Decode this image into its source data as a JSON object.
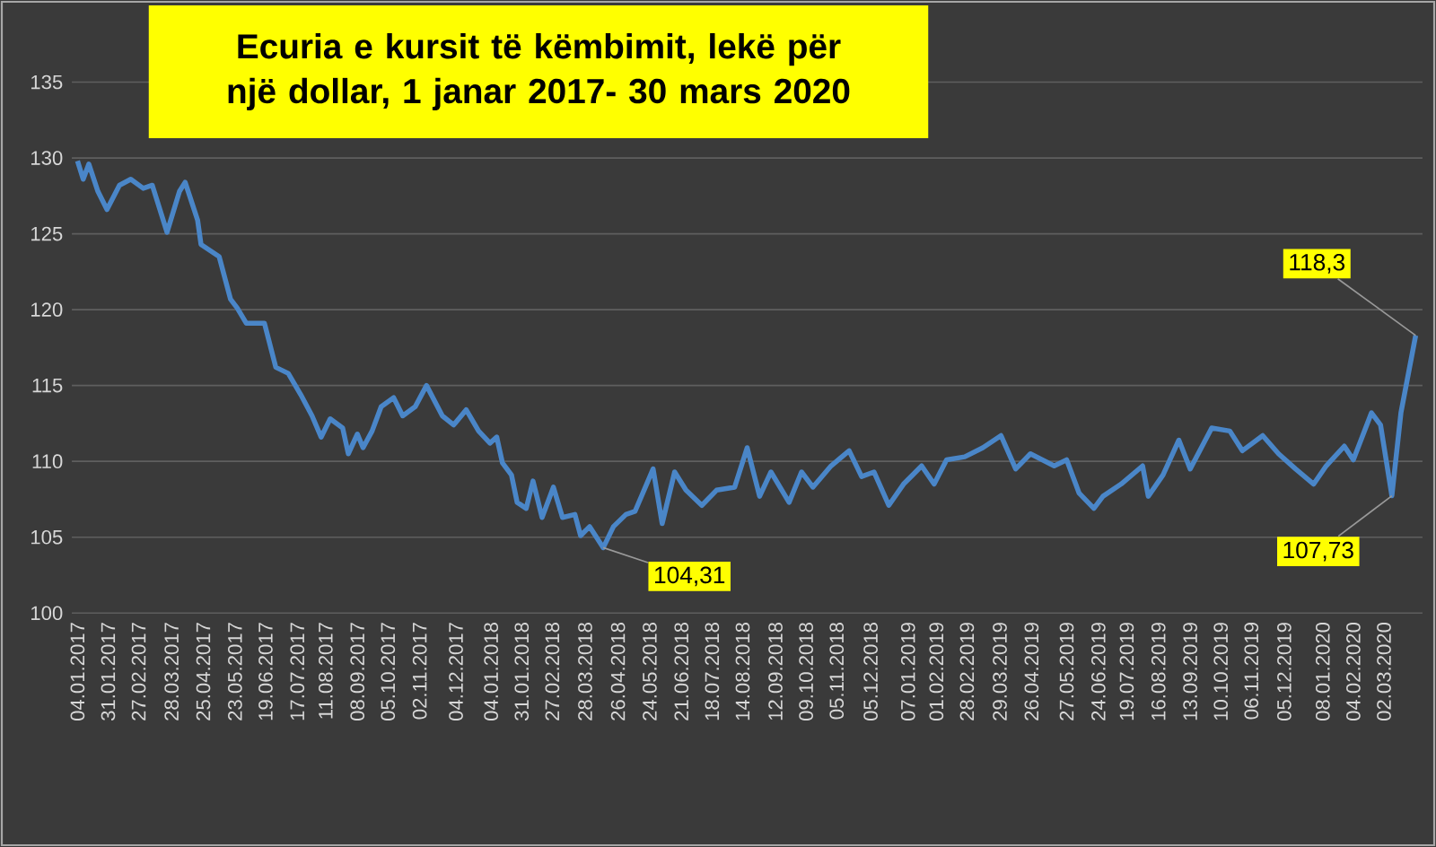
{
  "chart_data": {
    "type": "line",
    "title": "Ecuria e kursit të këmbimit, lekë për një dollar, 1 janar 2017- 30 mars 2020",
    "x": [
      "2017-01-04",
      "2017-01-09",
      "2017-01-14",
      "2017-01-22",
      "2017-01-30",
      "2017-02-10",
      "2017-02-20",
      "2017-03-03",
      "2017-03-11",
      "2017-03-24",
      "2017-04-04",
      "2017-04-09",
      "2017-04-20",
      "2017-04-23",
      "2017-05-09",
      "2017-05-19",
      "2017-05-25",
      "2017-06-02",
      "2017-06-18",
      "2017-06-28",
      "2017-07-09",
      "2017-07-20",
      "2017-07-30",
      "2017-08-07",
      "2017-08-15",
      "2017-08-26",
      "2017-08-31",
      "2017-09-08",
      "2017-09-13",
      "2017-09-21",
      "2017-09-29",
      "2017-10-10",
      "2017-10-18",
      "2017-10-29",
      "2017-11-08",
      "2017-11-22",
      "2017-12-02",
      "2017-12-13",
      "2017-12-24",
      "2018-01-03",
      "2018-01-09",
      "2018-01-14",
      "2018-01-22",
      "2018-01-27",
      "2018-02-04",
      "2018-02-10",
      "2018-02-18",
      "2018-02-28",
      "2018-03-08",
      "2018-03-19",
      "2018-03-24",
      "2018-04-01",
      "2018-04-13",
      "2018-04-22",
      "2018-05-03",
      "2018-05-11",
      "2018-05-19",
      "2018-05-27",
      "2018-06-04",
      "2018-06-15",
      "2018-06-25",
      "2018-07-09",
      "2018-07-22",
      "2018-08-07",
      "2018-08-18",
      "2018-08-29",
      "2018-09-08",
      "2018-09-24",
      "2018-10-05",
      "2018-10-15",
      "2018-10-31",
      "2018-11-16",
      "2018-11-27",
      "2018-12-08",
      "2018-12-21",
      "2019-01-03",
      "2019-01-19",
      "2019-01-30",
      "2019-02-10",
      "2019-02-26",
      "2019-03-14",
      "2019-03-30",
      "2019-04-12",
      "2019-04-25",
      "2019-05-16",
      "2019-05-27",
      "2019-06-07",
      "2019-06-20",
      "2019-06-28",
      "2019-07-14",
      "2019-08-02",
      "2019-08-07",
      "2019-08-20",
      "2019-09-03",
      "2019-09-13",
      "2019-10-02",
      "2019-10-18",
      "2019-10-29",
      "2019-11-16",
      "2019-11-30",
      "2019-12-15",
      "2019-12-31",
      "2020-01-11",
      "2020-01-27",
      "2020-02-04",
      "2020-02-20",
      "2020-02-28",
      "2020-03-09",
      "2020-03-17",
      "2020-03-30"
    ],
    "values": [
      129.8,
      128.6,
      129.6,
      127.8,
      126.6,
      128.2,
      128.6,
      128.0,
      128.2,
      125.1,
      127.8,
      128.4,
      125.9,
      124.3,
      123.5,
      120.7,
      120.1,
      119.1,
      119.1,
      116.2,
      115.8,
      114.4,
      113.0,
      111.6,
      112.8,
      112.2,
      110.5,
      111.8,
      110.9,
      112.0,
      113.6,
      114.2,
      113.0,
      113.6,
      115.0,
      113.0,
      112.4,
      113.4,
      112.0,
      111.2,
      111.6,
      109.9,
      109.1,
      107.3,
      106.9,
      108.7,
      106.3,
      108.3,
      106.3,
      106.5,
      105.1,
      105.7,
      104.31,
      105.7,
      106.5,
      106.7,
      108.1,
      109.5,
      105.9,
      109.3,
      108.1,
      107.1,
      108.1,
      108.3,
      110.9,
      107.7,
      109.3,
      107.3,
      109.3,
      108.3,
      109.7,
      110.7,
      109.0,
      109.3,
      107.1,
      108.5,
      109.7,
      108.5,
      110.1,
      110.3,
      110.9,
      111.7,
      109.5,
      110.5,
      109.7,
      110.1,
      107.9,
      106.9,
      107.7,
      108.5,
      109.7,
      107.7,
      109.1,
      111.4,
      109.5,
      112.2,
      112.0,
      110.7,
      111.7,
      110.5,
      109.5,
      108.5,
      109.7,
      111.0,
      110.1,
      113.2,
      112.4,
      107.73,
      113.2,
      118.3
    ],
    "color": "#4a86c8",
    "xlim": [
      "2016-12-30",
      "2020-04-05"
    ],
    "xticks": [
      {
        "value": "2017-01-04",
        "label": "04.01.2017"
      },
      {
        "value": "2017-01-31",
        "label": "31.01.2017"
      },
      {
        "value": "2017-02-27",
        "label": "27.02.2017"
      },
      {
        "value": "2017-03-28",
        "label": "28.03.2017"
      },
      {
        "value": "2017-04-25",
        "label": "25.04.2017"
      },
      {
        "value": "2017-05-23",
        "label": "23.05.2017"
      },
      {
        "value": "2017-06-19",
        "label": "19.06.2017"
      },
      {
        "value": "2017-07-17",
        "label": "17.07.2017"
      },
      {
        "value": "2017-08-11",
        "label": "11.08.2017"
      },
      {
        "value": "2017-09-08",
        "label": "08.09.2017"
      },
      {
        "value": "2017-10-05",
        "label": "05.10.2017"
      },
      {
        "value": "2017-11-02",
        "label": "02.11.2017"
      },
      {
        "value": "2017-12-04",
        "label": "04.12.2017"
      },
      {
        "value": "2018-01-04",
        "label": "04.01.2018"
      },
      {
        "value": "2018-01-31",
        "label": "31.01.2018"
      },
      {
        "value": "2018-02-27",
        "label": "27.02.2018"
      },
      {
        "value": "2018-03-28",
        "label": "28.03.2018"
      },
      {
        "value": "2018-04-26",
        "label": "26.04.2018"
      },
      {
        "value": "2018-05-24",
        "label": "24.05.2018"
      },
      {
        "value": "2018-06-21",
        "label": "21.06.2018"
      },
      {
        "value": "2018-07-18",
        "label": "18.07.2018"
      },
      {
        "value": "2018-08-14",
        "label": "14.08.2018"
      },
      {
        "value": "2018-09-12",
        "label": "12.09.2018"
      },
      {
        "value": "2018-10-09",
        "label": "09.10.2018"
      },
      {
        "value": "2018-11-05",
        "label": "05.11.2018"
      },
      {
        "value": "2018-12-05",
        "label": "05.12.2018"
      },
      {
        "value": "2019-01-07",
        "label": "07.01.2019"
      },
      {
        "value": "2019-02-01",
        "label": "01.02.2019"
      },
      {
        "value": "2019-02-28",
        "label": "28.02.2019"
      },
      {
        "value": "2019-03-29",
        "label": "29.03.2019"
      },
      {
        "value": "2019-04-26",
        "label": "26.04.2019"
      },
      {
        "value": "2019-05-27",
        "label": "27.05.2019"
      },
      {
        "value": "2019-06-24",
        "label": "24.06.2019"
      },
      {
        "value": "2019-07-19",
        "label": "19.07.2019"
      },
      {
        "value": "2019-08-16",
        "label": "16.08.2019"
      },
      {
        "value": "2019-09-13",
        "label": "13.09.2019"
      },
      {
        "value": "2019-10-10",
        "label": "10.10.2019"
      },
      {
        "value": "2019-11-06",
        "label": "06.11.2019"
      },
      {
        "value": "2019-12-05",
        "label": "05.12.2019"
      },
      {
        "value": "2020-01-08",
        "label": "08.01.2020"
      },
      {
        "value": "2020-02-04",
        "label": "04.02.2020"
      },
      {
        "value": "2020-03-02",
        "label": "02.03.2020"
      }
    ],
    "ylim": [
      100,
      135
    ],
    "yticks": [
      100,
      105,
      110,
      115,
      120,
      125,
      130,
      135
    ],
    "grid": "y",
    "annotations": [
      {
        "text": "104,31",
        "x": "2018-04-13",
        "y": 104.31
      },
      {
        "text": "118,3",
        "x": "2020-03-30",
        "y": 118.3
      },
      {
        "text": "107,73",
        "x": "2020-03-09",
        "y": 107.73
      }
    ]
  }
}
